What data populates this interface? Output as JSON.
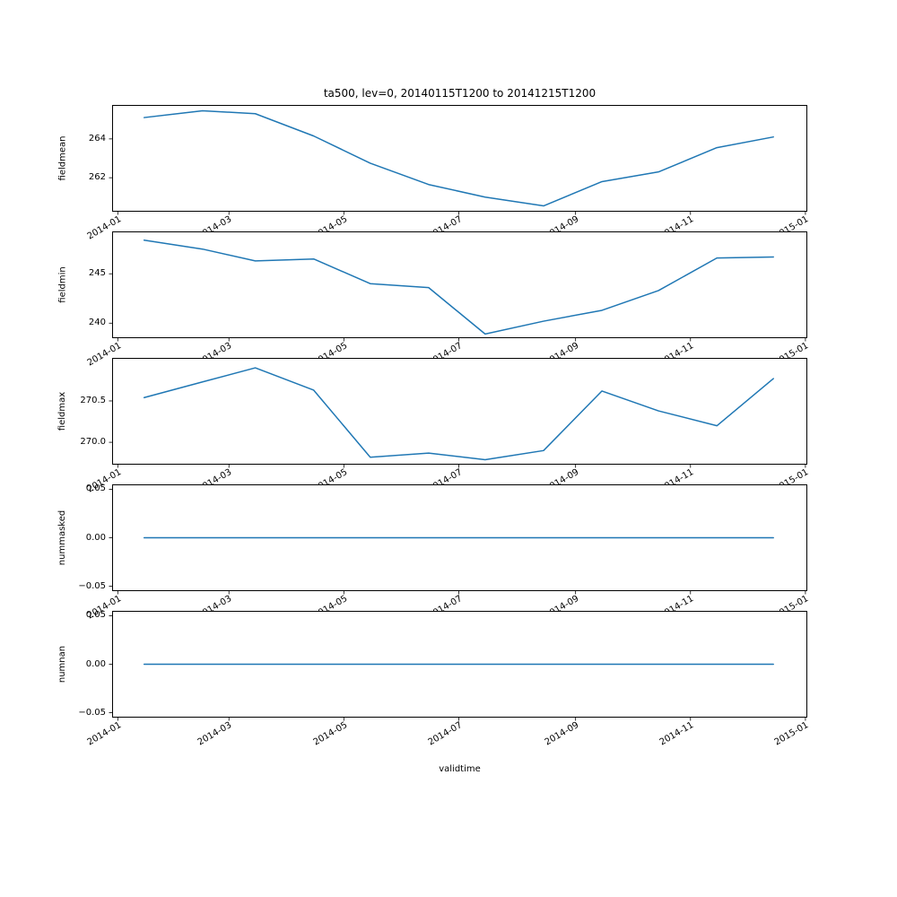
{
  "figure": {
    "title": "ta500, lev=0, 20140115T1200 to 20141215T1200",
    "line_color": "#1f77b4",
    "text_color": "#000000",
    "background": "#ffffff"
  },
  "x_axis": {
    "label": "validtime",
    "ticks": [
      {
        "date": "2014-01-01",
        "label": "2014-01"
      },
      {
        "date": "2014-03-01",
        "label": "2014-03"
      },
      {
        "date": "2014-05-01",
        "label": "2014-05"
      },
      {
        "date": "2014-07-01",
        "label": "2014-07"
      },
      {
        "date": "2014-09-01",
        "label": "2014-09"
      },
      {
        "date": "2014-11-01",
        "label": "2014-11"
      },
      {
        "date": "2015-01-01",
        "label": "2015-01"
      }
    ]
  },
  "chart_data": [
    {
      "type": "line",
      "name": "fieldmean",
      "ylabel": "fieldmean",
      "x": [
        "2014-01-15",
        "2014-02-15",
        "2014-03-15",
        "2014-04-15",
        "2014-05-15",
        "2014-06-15",
        "2014-07-15",
        "2014-08-15",
        "2014-09-15",
        "2014-10-15",
        "2014-11-15",
        "2014-12-15"
      ],
      "values": [
        265.1,
        265.45,
        265.3,
        264.15,
        262.75,
        261.65,
        261.0,
        260.55,
        261.8,
        262.3,
        263.55,
        264.1
      ],
      "ylim": [
        260.25,
        265.75
      ],
      "yticks": [
        {
          "value": 264,
          "label": "264"
        },
        {
          "value": 262,
          "label": "262"
        }
      ]
    },
    {
      "type": "line",
      "name": "fieldmin",
      "ylabel": "fieldmin",
      "x": [
        "2014-01-15",
        "2014-02-15",
        "2014-03-15",
        "2014-04-15",
        "2014-05-15",
        "2014-06-15",
        "2014-07-15",
        "2014-08-15",
        "2014-09-15",
        "2014-10-15",
        "2014-11-15",
        "2014-12-15"
      ],
      "values": [
        248.4,
        247.5,
        246.3,
        246.5,
        244.0,
        243.6,
        238.9,
        240.2,
        241.3,
        243.3,
        246.6,
        246.7
      ],
      "ylim": [
        238.48,
        249.29
      ],
      "yticks": [
        {
          "value": 245,
          "label": "245"
        },
        {
          "value": 240,
          "label": "240"
        }
      ]
    },
    {
      "type": "line",
      "name": "fieldmax",
      "ylabel": "fieldmax",
      "x": [
        "2014-01-15",
        "2014-02-15",
        "2014-03-15",
        "2014-04-15",
        "2014-05-15",
        "2014-06-15",
        "2014-07-15",
        "2014-08-15",
        "2014-09-15",
        "2014-10-15",
        "2014-11-15",
        "2014-12-15"
      ],
      "values": [
        270.54,
        270.73,
        270.9,
        270.63,
        269.82,
        269.87,
        269.79,
        269.9,
        270.62,
        270.38,
        270.2,
        270.77
      ],
      "ylim": [
        269.73,
        271.02
      ],
      "yticks": [
        {
          "value": 270.5,
          "label": "270.5"
        },
        {
          "value": 270.0,
          "label": "270.0"
        }
      ]
    },
    {
      "type": "line",
      "name": "nummasked",
      "ylabel": "nummasked",
      "x": [
        "2014-01-15",
        "2014-02-15",
        "2014-03-15",
        "2014-04-15",
        "2014-05-15",
        "2014-06-15",
        "2014-07-15",
        "2014-08-15",
        "2014-09-15",
        "2014-10-15",
        "2014-11-15",
        "2014-12-15"
      ],
      "values": [
        0,
        0,
        0,
        0,
        0,
        0,
        0,
        0,
        0,
        0,
        0,
        0
      ],
      "ylim": [
        -0.055,
        0.055
      ],
      "yticks": [
        {
          "value": 0.05,
          "label": "0.05"
        },
        {
          "value": 0.0,
          "label": "0.00"
        },
        {
          "value": -0.05,
          "label": "−0.05"
        }
      ]
    },
    {
      "type": "line",
      "name": "numnan",
      "ylabel": "numnan",
      "x": [
        "2014-01-15",
        "2014-02-15",
        "2014-03-15",
        "2014-04-15",
        "2014-05-15",
        "2014-06-15",
        "2014-07-15",
        "2014-08-15",
        "2014-09-15",
        "2014-10-15",
        "2014-11-15",
        "2014-12-15"
      ],
      "values": [
        0,
        0,
        0,
        0,
        0,
        0,
        0,
        0,
        0,
        0,
        0,
        0
      ],
      "ylim": [
        -0.055,
        0.055
      ],
      "yticks": [
        {
          "value": 0.05,
          "label": "0.05"
        },
        {
          "value": 0.0,
          "label": "0.00"
        },
        {
          "value": -0.05,
          "label": "−0.05"
        }
      ]
    }
  ]
}
